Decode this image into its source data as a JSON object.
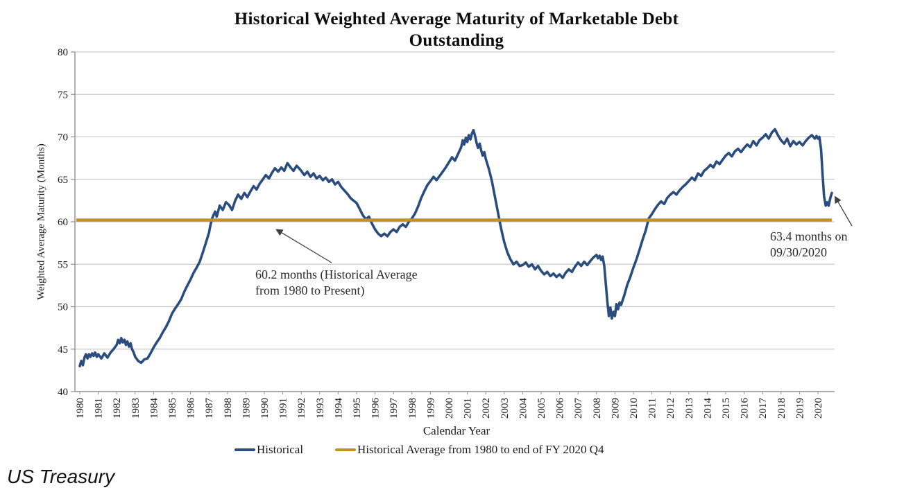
{
  "source": {
    "label": "US Treasury"
  },
  "title_lines": [
    "Historical Weighted Average Maturity of Marketable Debt",
    "Outstanding"
  ],
  "chart_data": {
    "type": "line",
    "title": "Historical Weighted Average Maturity of Marketable Debt Outstanding",
    "xlabel": "Calendar Year",
    "ylabel": "Weighted Average Maturity (Months)",
    "ylim": [
      40,
      80
    ],
    "yticks": [
      40,
      45,
      50,
      55,
      60,
      65,
      70,
      75,
      80
    ],
    "xticks": [
      1980,
      1981,
      1982,
      1983,
      1984,
      1985,
      1986,
      1987,
      1988,
      1989,
      1990,
      1991,
      1992,
      1993,
      1994,
      1995,
      1996,
      1997,
      1998,
      1999,
      2000,
      2001,
      2002,
      2003,
      2004,
      2005,
      2006,
      2007,
      2008,
      2009,
      2010,
      2011,
      2012,
      2013,
      2014,
      2015,
      2016,
      2017,
      2018,
      2019,
      2020
    ],
    "grid": "horizontal",
    "legend_position": "bottom",
    "colors": {
      "historical": "#2b4d7e",
      "average": "#bf9322",
      "gridline": "#c9c9c9",
      "axis": "#8f8f8f",
      "arrow": "#404040"
    },
    "series": [
      {
        "name": "Historical",
        "color": "#2b4d7e",
        "points": [
          [
            1980.0,
            43.0
          ],
          [
            1980.08,
            43.6
          ],
          [
            1980.17,
            43.1
          ],
          [
            1980.25,
            44.0
          ],
          [
            1980.33,
            44.4
          ],
          [
            1980.42,
            43.9
          ],
          [
            1980.5,
            44.4
          ],
          [
            1980.58,
            44.1
          ],
          [
            1980.67,
            44.5
          ],
          [
            1980.75,
            44.2
          ],
          [
            1980.83,
            44.6
          ],
          [
            1980.92,
            44.1
          ],
          [
            1981.0,
            44.4
          ],
          [
            1981.17,
            43.9
          ],
          [
            1981.33,
            44.5
          ],
          [
            1981.5,
            44.0
          ],
          [
            1981.67,
            44.6
          ],
          [
            1981.83,
            45.0
          ],
          [
            1982.0,
            45.5
          ],
          [
            1982.08,
            46.1
          ],
          [
            1982.17,
            45.7
          ],
          [
            1982.25,
            46.3
          ],
          [
            1982.33,
            45.8
          ],
          [
            1982.42,
            46.1
          ],
          [
            1982.5,
            45.5
          ],
          [
            1982.58,
            45.9
          ],
          [
            1982.67,
            45.3
          ],
          [
            1982.75,
            45.7
          ],
          [
            1982.83,
            45.0
          ],
          [
            1982.92,
            44.6
          ],
          [
            1983.0,
            44.1
          ],
          [
            1983.17,
            43.6
          ],
          [
            1983.33,
            43.4
          ],
          [
            1983.5,
            43.8
          ],
          [
            1983.67,
            43.9
          ],
          [
            1983.83,
            44.5
          ],
          [
            1984.0,
            45.2
          ],
          [
            1984.17,
            45.8
          ],
          [
            1984.33,
            46.3
          ],
          [
            1984.5,
            47.0
          ],
          [
            1984.67,
            47.6
          ],
          [
            1984.83,
            48.3
          ],
          [
            1985.0,
            49.2
          ],
          [
            1985.17,
            49.8
          ],
          [
            1985.33,
            50.3
          ],
          [
            1985.5,
            50.9
          ],
          [
            1985.67,
            51.8
          ],
          [
            1985.83,
            52.5
          ],
          [
            1986.0,
            53.2
          ],
          [
            1986.17,
            54.0
          ],
          [
            1986.33,
            54.6
          ],
          [
            1986.5,
            55.3
          ],
          [
            1986.67,
            56.4
          ],
          [
            1986.83,
            57.5
          ],
          [
            1987.0,
            58.7
          ],
          [
            1987.08,
            59.6
          ],
          [
            1987.17,
            60.4
          ],
          [
            1987.33,
            61.2
          ],
          [
            1987.42,
            60.6
          ],
          [
            1987.58,
            61.9
          ],
          [
            1987.75,
            61.4
          ],
          [
            1987.92,
            62.3
          ],
          [
            1988.08,
            62.0
          ],
          [
            1988.25,
            61.4
          ],
          [
            1988.42,
            62.5
          ],
          [
            1988.58,
            63.2
          ],
          [
            1988.75,
            62.7
          ],
          [
            1988.92,
            63.4
          ],
          [
            1989.08,
            62.9
          ],
          [
            1989.25,
            63.6
          ],
          [
            1989.42,
            64.2
          ],
          [
            1989.58,
            63.8
          ],
          [
            1989.75,
            64.5
          ],
          [
            1989.92,
            65.0
          ],
          [
            1990.08,
            65.5
          ],
          [
            1990.25,
            65.1
          ],
          [
            1990.42,
            65.8
          ],
          [
            1990.58,
            66.3
          ],
          [
            1990.75,
            65.9
          ],
          [
            1990.92,
            66.4
          ],
          [
            1991.08,
            66.0
          ],
          [
            1991.25,
            66.9
          ],
          [
            1991.42,
            66.4
          ],
          [
            1991.58,
            66.0
          ],
          [
            1991.75,
            66.6
          ],
          [
            1991.92,
            66.2
          ],
          [
            1992.0,
            66.0
          ],
          [
            1992.17,
            65.5
          ],
          [
            1992.33,
            65.9
          ],
          [
            1992.5,
            65.3
          ],
          [
            1992.67,
            65.7
          ],
          [
            1992.83,
            65.1
          ],
          [
            1993.0,
            65.4
          ],
          [
            1993.17,
            64.9
          ],
          [
            1993.33,
            65.2
          ],
          [
            1993.5,
            64.7
          ],
          [
            1993.67,
            65.0
          ],
          [
            1993.83,
            64.4
          ],
          [
            1994.0,
            64.7
          ],
          [
            1994.17,
            64.1
          ],
          [
            1994.33,
            63.7
          ],
          [
            1994.5,
            63.3
          ],
          [
            1994.67,
            62.8
          ],
          [
            1994.83,
            62.5
          ],
          [
            1995.0,
            62.2
          ],
          [
            1995.17,
            61.5
          ],
          [
            1995.33,
            60.8
          ],
          [
            1995.5,
            60.3
          ],
          [
            1995.67,
            60.6
          ],
          [
            1995.83,
            59.8
          ],
          [
            1996.0,
            59.1
          ],
          [
            1996.17,
            58.6
          ],
          [
            1996.33,
            58.3
          ],
          [
            1996.5,
            58.6
          ],
          [
            1996.67,
            58.3
          ],
          [
            1996.83,
            58.8
          ],
          [
            1997.0,
            59.1
          ],
          [
            1997.17,
            58.8
          ],
          [
            1997.33,
            59.4
          ],
          [
            1997.5,
            59.7
          ],
          [
            1997.67,
            59.4
          ],
          [
            1997.83,
            60.0
          ],
          [
            1998.0,
            60.4
          ],
          [
            1998.17,
            61.0
          ],
          [
            1998.33,
            61.8
          ],
          [
            1998.5,
            62.8
          ],
          [
            1998.67,
            63.6
          ],
          [
            1998.83,
            64.3
          ],
          [
            1999.0,
            64.8
          ],
          [
            1999.17,
            65.3
          ],
          [
            1999.33,
            64.9
          ],
          [
            1999.5,
            65.4
          ],
          [
            1999.67,
            65.9
          ],
          [
            1999.83,
            66.4
          ],
          [
            2000.0,
            67.0
          ],
          [
            2000.17,
            67.6
          ],
          [
            2000.33,
            67.2
          ],
          [
            2000.5,
            68.0
          ],
          [
            2000.67,
            68.8
          ],
          [
            2000.75,
            69.6
          ],
          [
            2000.83,
            69.1
          ],
          [
            2000.92,
            69.9
          ],
          [
            2001.0,
            69.4
          ],
          [
            2001.08,
            70.2
          ],
          [
            2001.17,
            69.7
          ],
          [
            2001.25,
            70.4
          ],
          [
            2001.33,
            70.8
          ],
          [
            2001.42,
            70.1
          ],
          [
            2001.5,
            69.3
          ],
          [
            2001.58,
            68.7
          ],
          [
            2001.67,
            69.2
          ],
          [
            2001.75,
            68.4
          ],
          [
            2001.83,
            67.8
          ],
          [
            2001.92,
            68.2
          ],
          [
            2002.0,
            67.4
          ],
          [
            2002.17,
            66.2
          ],
          [
            2002.33,
            64.8
          ],
          [
            2002.5,
            62.9
          ],
          [
            2002.67,
            61.0
          ],
          [
            2002.83,
            59.2
          ],
          [
            2003.0,
            57.6
          ],
          [
            2003.17,
            56.4
          ],
          [
            2003.33,
            55.6
          ],
          [
            2003.5,
            55.0
          ],
          [
            2003.67,
            55.3
          ],
          [
            2003.83,
            54.8
          ],
          [
            2004.0,
            54.9
          ],
          [
            2004.17,
            55.2
          ],
          [
            2004.33,
            54.7
          ],
          [
            2004.5,
            55.0
          ],
          [
            2004.67,
            54.4
          ],
          [
            2004.83,
            54.8
          ],
          [
            2005.0,
            54.2
          ],
          [
            2005.17,
            53.8
          ],
          [
            2005.33,
            54.1
          ],
          [
            2005.5,
            53.6
          ],
          [
            2005.67,
            53.9
          ],
          [
            2005.83,
            53.5
          ],
          [
            2006.0,
            53.8
          ],
          [
            2006.17,
            53.4
          ],
          [
            2006.33,
            54.0
          ],
          [
            2006.5,
            54.4
          ],
          [
            2006.67,
            54.1
          ],
          [
            2006.83,
            54.7
          ],
          [
            2007.0,
            55.2
          ],
          [
            2007.17,
            54.8
          ],
          [
            2007.33,
            55.3
          ],
          [
            2007.5,
            54.9
          ],
          [
            2007.67,
            55.4
          ],
          [
            2007.83,
            55.8
          ],
          [
            2008.0,
            56.1
          ],
          [
            2008.08,
            55.7
          ],
          [
            2008.17,
            56.0
          ],
          [
            2008.25,
            55.5
          ],
          [
            2008.33,
            55.9
          ],
          [
            2008.42,
            54.8
          ],
          [
            2008.5,
            52.8
          ],
          [
            2008.58,
            50.8
          ],
          [
            2008.67,
            48.9
          ],
          [
            2008.75,
            49.9
          ],
          [
            2008.83,
            48.6
          ],
          [
            2008.92,
            49.4
          ],
          [
            2009.0,
            48.9
          ],
          [
            2009.08,
            50.3
          ],
          [
            2009.17,
            49.7
          ],
          [
            2009.25,
            50.5
          ],
          [
            2009.33,
            50.2
          ],
          [
            2009.5,
            51.3
          ],
          [
            2009.67,
            52.6
          ],
          [
            2009.83,
            53.5
          ],
          [
            2010.0,
            54.6
          ],
          [
            2010.17,
            55.6
          ],
          [
            2010.33,
            56.7
          ],
          [
            2010.5,
            57.9
          ],
          [
            2010.67,
            59.0
          ],
          [
            2010.83,
            60.4
          ],
          [
            2011.0,
            60.9
          ],
          [
            2011.17,
            61.5
          ],
          [
            2011.33,
            62.0
          ],
          [
            2011.5,
            62.4
          ],
          [
            2011.67,
            62.1
          ],
          [
            2011.83,
            62.8
          ],
          [
            2012.0,
            63.2
          ],
          [
            2012.17,
            63.5
          ],
          [
            2012.33,
            63.2
          ],
          [
            2012.5,
            63.7
          ],
          [
            2012.67,
            64.1
          ],
          [
            2012.83,
            64.4
          ],
          [
            2013.0,
            64.8
          ],
          [
            2013.17,
            65.2
          ],
          [
            2013.33,
            64.9
          ],
          [
            2013.5,
            65.7
          ],
          [
            2013.67,
            65.4
          ],
          [
            2013.83,
            66.0
          ],
          [
            2014.0,
            66.3
          ],
          [
            2014.17,
            66.7
          ],
          [
            2014.33,
            66.4
          ],
          [
            2014.5,
            67.1
          ],
          [
            2014.67,
            66.8
          ],
          [
            2014.83,
            67.3
          ],
          [
            2015.0,
            67.8
          ],
          [
            2015.17,
            68.1
          ],
          [
            2015.33,
            67.7
          ],
          [
            2015.5,
            68.3
          ],
          [
            2015.67,
            68.6
          ],
          [
            2015.83,
            68.2
          ],
          [
            2016.0,
            68.7
          ],
          [
            2016.17,
            69.1
          ],
          [
            2016.33,
            68.8
          ],
          [
            2016.5,
            69.5
          ],
          [
            2016.67,
            69.0
          ],
          [
            2016.83,
            69.6
          ],
          [
            2017.0,
            69.9
          ],
          [
            2017.17,
            70.3
          ],
          [
            2017.33,
            69.8
          ],
          [
            2017.5,
            70.5
          ],
          [
            2017.67,
            70.9
          ],
          [
            2017.83,
            70.2
          ],
          [
            2018.0,
            69.6
          ],
          [
            2018.17,
            69.2
          ],
          [
            2018.33,
            69.8
          ],
          [
            2018.5,
            68.9
          ],
          [
            2018.67,
            69.5
          ],
          [
            2018.83,
            69.1
          ],
          [
            2019.0,
            69.4
          ],
          [
            2019.17,
            69.0
          ],
          [
            2019.33,
            69.5
          ],
          [
            2019.5,
            69.9
          ],
          [
            2019.67,
            70.2
          ],
          [
            2019.83,
            69.8
          ],
          [
            2019.92,
            70.1
          ],
          [
            2020.0,
            69.8
          ],
          [
            2020.08,
            70.0
          ],
          [
            2020.17,
            68.5
          ],
          [
            2020.25,
            65.5
          ],
          [
            2020.33,
            63.0
          ],
          [
            2020.42,
            61.9
          ],
          [
            2020.5,
            62.3
          ],
          [
            2020.58,
            61.9
          ],
          [
            2020.67,
            62.8
          ],
          [
            2020.75,
            63.4
          ]
        ]
      },
      {
        "name": "Historical Average from 1980 to end of FY 2020 Q4",
        "color": "#bf9322",
        "style": "constant",
        "value": 60.2,
        "x_range": [
          1980.0,
          2020.75
        ]
      }
    ],
    "annotations": [
      {
        "name": "historical-average-callout",
        "line1": "60.2 months (Historical Average",
        "line2": "from 1980 to Present)",
        "points_to": {
          "x": 1990.6,
          "y": 60.2
        }
      },
      {
        "name": "latest-value-callout",
        "line1": "63.4 months on",
        "line2": "09/30/2020",
        "points_to": {
          "x": 2020.75,
          "y": 63.4
        }
      }
    ]
  }
}
